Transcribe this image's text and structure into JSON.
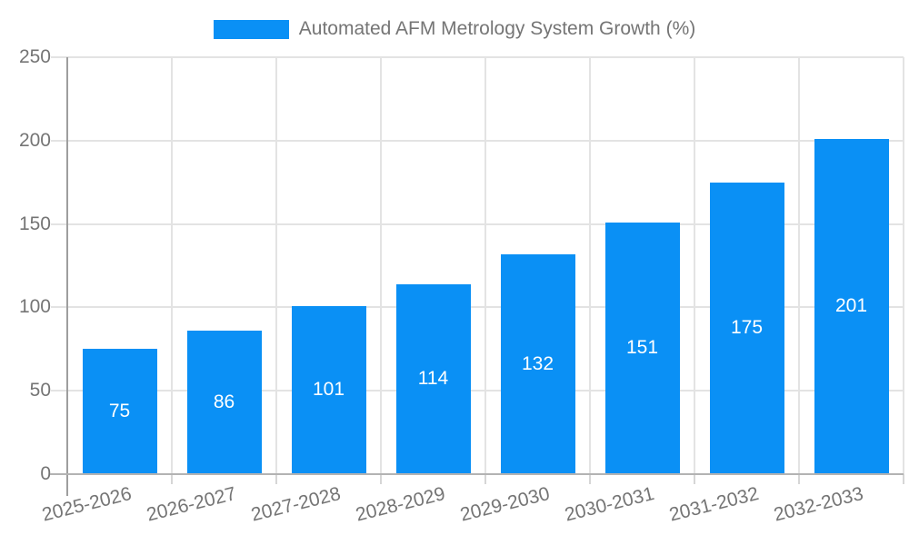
{
  "chart_data": {
    "type": "bar",
    "title": "",
    "legend": {
      "label": "Automated AFM Metrology System Growth (%)",
      "position": "top-center"
    },
    "categories": [
      "2025-2026",
      "2026-2027",
      "2027-2028",
      "2028-2029",
      "2029-2030",
      "2030-2031",
      "2031-2032",
      "2032-2033"
    ],
    "values": [
      75,
      86,
      101,
      114,
      132,
      151,
      175,
      201
    ],
    "xlabel": "",
    "ylabel": "",
    "ylim": [
      0,
      250
    ],
    "yticks": [
      0,
      50,
      100,
      150,
      200,
      250
    ],
    "grid": true,
    "x_label_rotation_deg": -14,
    "colors": {
      "bar": "#0a90f5",
      "value_label": "#ffffff",
      "axis_text": "#757575",
      "grid_line": "#e3e3e3",
      "x_axis_line": "#b3b3b3",
      "y_axis_line": "#9e9e9e",
      "background": "#ffffff"
    }
  }
}
